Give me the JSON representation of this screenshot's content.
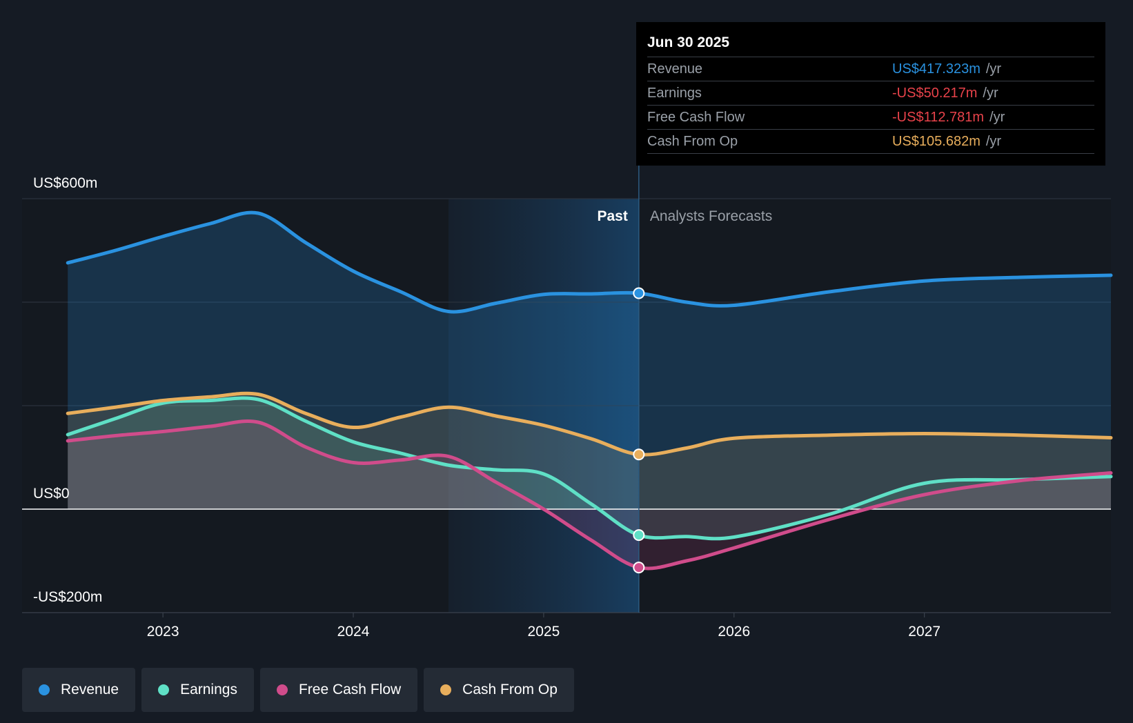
{
  "chart_data": {
    "type": "area",
    "x_ticks": [
      "2023",
      "2024",
      "2025",
      "2026",
      "2027"
    ],
    "y_labels": {
      "top": "US$600m",
      "zero": "US$0",
      "bottom": "-US$200m"
    },
    "ylim": [
      -200,
      600
    ],
    "xlim": [
      2022.26,
      2027.98
    ],
    "past_label": "Past",
    "forecast_label": "Analysts Forecasts",
    "divider_x": 2025.5,
    "series": [
      {
        "name": "Revenue",
        "color": "#2a92e0",
        "points": [
          [
            2022.5,
            476
          ],
          [
            2022.75,
            500
          ],
          [
            2023.0,
            527
          ],
          [
            2023.25,
            552
          ],
          [
            2023.5,
            572
          ],
          [
            2023.75,
            515
          ],
          [
            2024.0,
            460
          ],
          [
            2024.25,
            420
          ],
          [
            2024.5,
            382
          ],
          [
            2024.75,
            398
          ],
          [
            2025.0,
            415
          ],
          [
            2025.25,
            416
          ],
          [
            2025.5,
            417.3
          ],
          [
            2025.75,
            400
          ],
          [
            2026.0,
            394
          ],
          [
            2026.5,
            420
          ],
          [
            2027.0,
            441
          ],
          [
            2027.5,
            448
          ],
          [
            2027.98,
            452
          ]
        ]
      },
      {
        "name": "Earnings",
        "color": "#5fe0c6",
        "points": [
          [
            2022.5,
            144
          ],
          [
            2022.75,
            175
          ],
          [
            2023.0,
            205
          ],
          [
            2023.25,
            210
          ],
          [
            2023.5,
            212
          ],
          [
            2023.75,
            170
          ],
          [
            2024.0,
            130
          ],
          [
            2024.25,
            108
          ],
          [
            2024.5,
            85
          ],
          [
            2024.75,
            76
          ],
          [
            2025.0,
            68
          ],
          [
            2025.25,
            10
          ],
          [
            2025.5,
            -50.2
          ],
          [
            2025.75,
            -53
          ],
          [
            2026.0,
            -54
          ],
          [
            2026.5,
            -10
          ],
          [
            2027.0,
            50
          ],
          [
            2027.5,
            57
          ],
          [
            2027.98,
            63
          ]
        ]
      },
      {
        "name": "Free Cash Flow",
        "color": "#d04c8b",
        "points": [
          [
            2022.5,
            132
          ],
          [
            2022.75,
            142
          ],
          [
            2023.0,
            150
          ],
          [
            2023.25,
            160
          ],
          [
            2023.5,
            168
          ],
          [
            2023.75,
            120
          ],
          [
            2024.0,
            90
          ],
          [
            2024.25,
            95
          ],
          [
            2024.5,
            102
          ],
          [
            2024.75,
            52
          ],
          [
            2025.0,
            0
          ],
          [
            2025.25,
            -60
          ],
          [
            2025.5,
            -112.8
          ],
          [
            2025.75,
            -100
          ],
          [
            2026.0,
            -75
          ],
          [
            2026.5,
            -20
          ],
          [
            2027.0,
            28
          ],
          [
            2027.5,
            55
          ],
          [
            2027.98,
            70
          ]
        ]
      },
      {
        "name": "Cash From Op",
        "color": "#e8ae5c",
        "points": [
          [
            2022.5,
            185
          ],
          [
            2022.75,
            197
          ],
          [
            2023.0,
            210
          ],
          [
            2023.25,
            217
          ],
          [
            2023.5,
            222
          ],
          [
            2023.75,
            185
          ],
          [
            2024.0,
            158
          ],
          [
            2024.25,
            178
          ],
          [
            2024.5,
            197
          ],
          [
            2024.75,
            180
          ],
          [
            2025.0,
            162
          ],
          [
            2025.25,
            136
          ],
          [
            2025.5,
            105.7
          ],
          [
            2025.75,
            118
          ],
          [
            2026.0,
            137
          ],
          [
            2026.5,
            143
          ],
          [
            2027.0,
            146
          ],
          [
            2027.5,
            143
          ],
          [
            2027.98,
            138
          ]
        ]
      }
    ],
    "highlight_x": 2025.5
  },
  "tooltip": {
    "date": "Jun 30 2025",
    "rows": [
      {
        "label": "Revenue",
        "value": "US$417.323m",
        "unit": "/yr",
        "color": "#2a92e0"
      },
      {
        "label": "Earnings",
        "value": "-US$50.217m",
        "unit": "/yr",
        "color": "#e8424a"
      },
      {
        "label": "Free Cash Flow",
        "value": "-US$112.781m",
        "unit": "/yr",
        "color": "#e8424a"
      },
      {
        "label": "Cash From Op",
        "value": "US$105.682m",
        "unit": "/yr",
        "color": "#e8ae5c"
      }
    ]
  },
  "legend": [
    {
      "label": "Revenue",
      "color": "#2a92e0"
    },
    {
      "label": "Earnings",
      "color": "#5fe0c6"
    },
    {
      "label": "Free Cash Flow",
      "color": "#d04c8b"
    },
    {
      "label": "Cash From Op",
      "color": "#e8ae5c"
    }
  ]
}
